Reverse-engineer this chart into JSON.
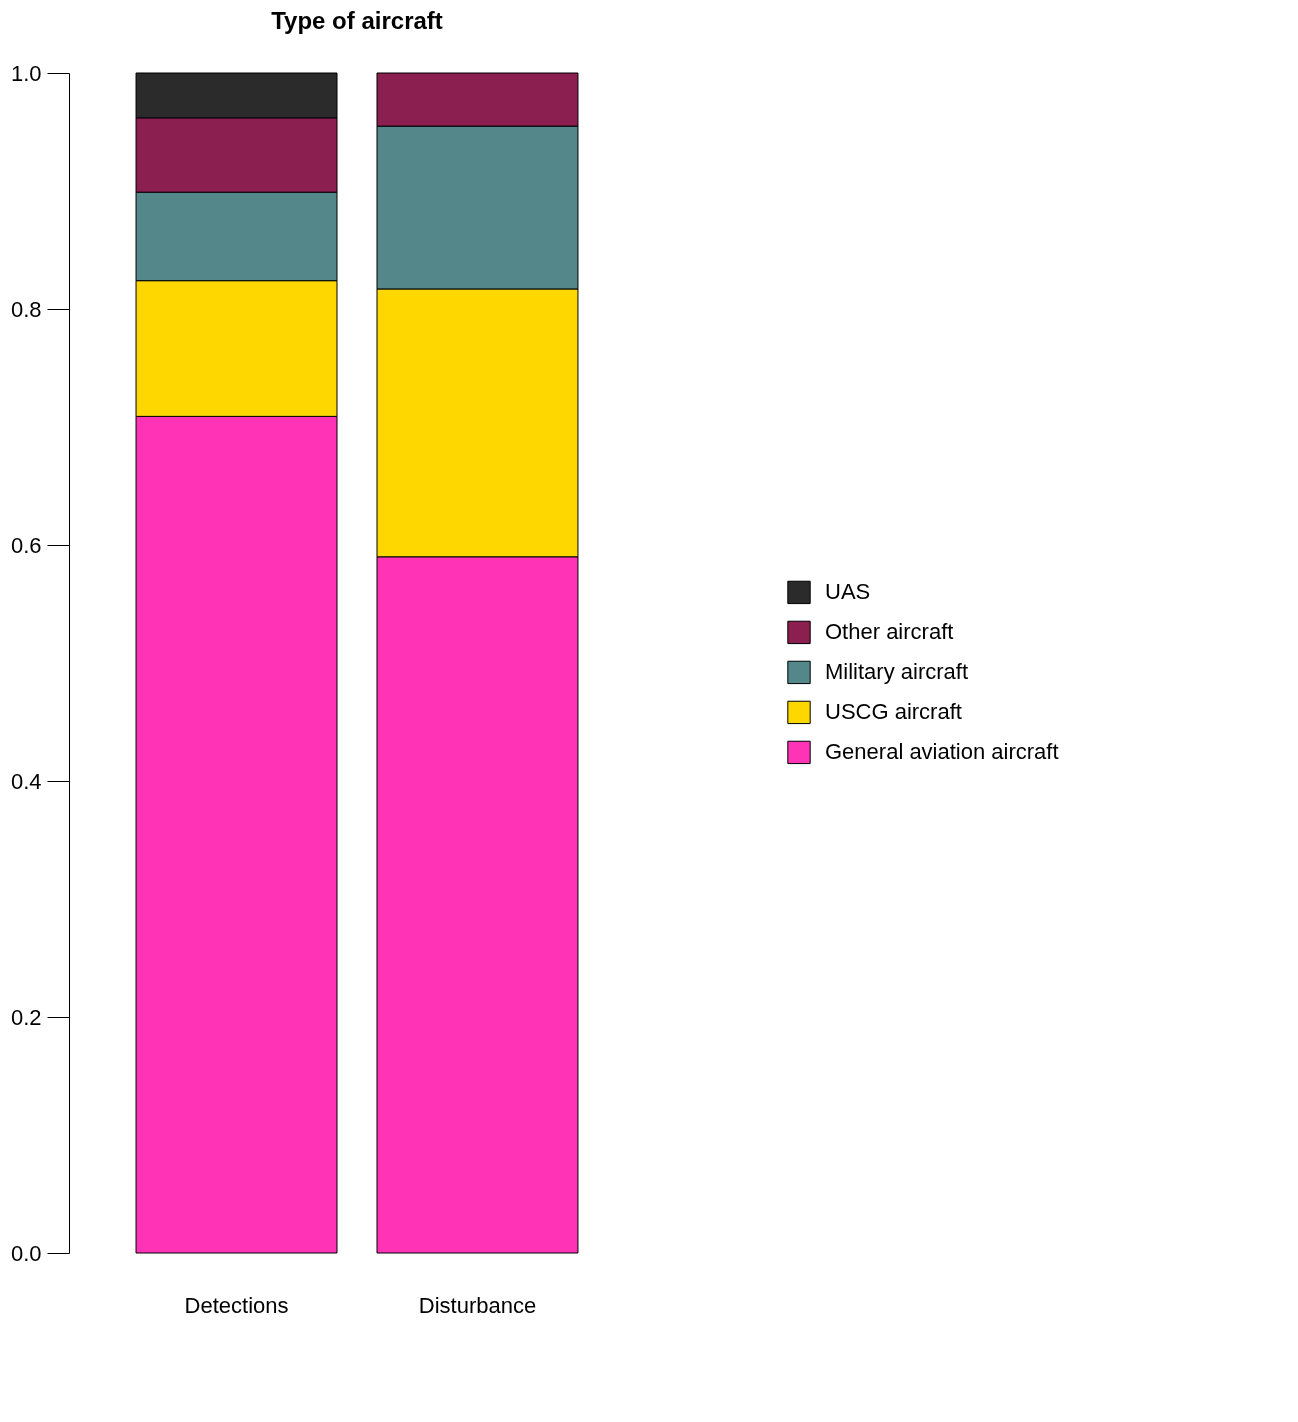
{
  "chart_data": {
    "type": "bar",
    "title": "Type of aircraft",
    "categories": [
      "Detections",
      "Disturbance"
    ],
    "stacked": true,
    "legend": "right",
    "ylim": [
      0,
      1
    ],
    "yticks": [
      {
        "value": 0,
        "label": "0.0"
      },
      {
        "value": 0.2,
        "label": "0.2"
      },
      {
        "value": 0.4,
        "label": "0.4"
      },
      {
        "value": 0.6,
        "label": "0.6"
      },
      {
        "value": 0.8,
        "label": "0.8"
      },
      {
        "value": 1,
        "label": "1.0"
      }
    ],
    "series": [
      {
        "name": "General aviation aircraft",
        "color": "#ff33b5",
        "values": [
          0.709,
          0.59
        ]
      },
      {
        "name": "USCG aircraft",
        "color": "#ffd700",
        "values": [
          0.115,
          0.227
        ]
      },
      {
        "name": "Military aircraft",
        "color": "#53878a",
        "values": [
          0.075,
          0.138
        ]
      },
      {
        "name": "Other aircraft",
        "color": "#8b1f4f",
        "values": [
          0.063,
          0.045
        ]
      },
      {
        "name": "UAS",
        "color": "#2b2b2b",
        "values": [
          0.038,
          null
        ]
      }
    ]
  }
}
